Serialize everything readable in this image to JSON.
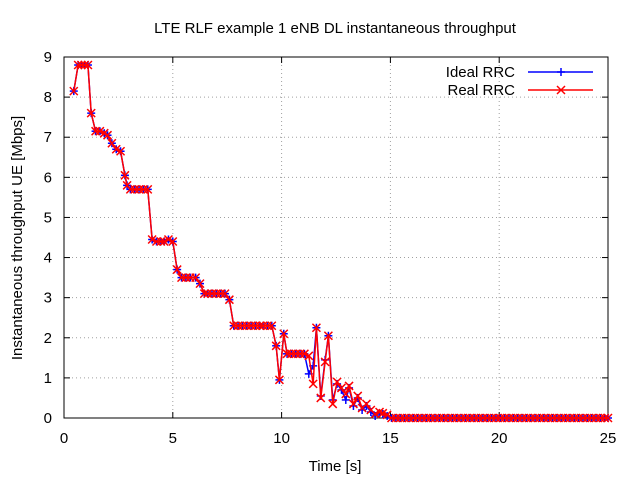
{
  "chart_data": {
    "type": "line",
    "title": "LTE RLF example 1 eNB DL instantaneous throughput",
    "xlabel": "Time [s]",
    "ylabel": "Instantaneous throughput UE [Mbps]",
    "xlim": [
      0,
      25
    ],
    "ylim": [
      0,
      9
    ],
    "xticks": [
      0,
      5,
      10,
      15,
      20,
      25
    ],
    "yticks": [
      0,
      1,
      2,
      3,
      4,
      5,
      6,
      7,
      8,
      9
    ],
    "grid": true,
    "legend_position": "top-right",
    "series": [
      {
        "name": "Ideal RRC",
        "color": "#0000ff",
        "marker": "plus",
        "x": [
          0.45,
          0.65,
          0.8,
          0.95,
          1.1,
          1.25,
          1.45,
          1.65,
          1.85,
          2.0,
          2.2,
          2.4,
          2.6,
          2.8,
          2.9,
          3.05,
          3.25,
          3.45,
          3.65,
          3.85,
          4.05,
          4.25,
          4.45,
          4.6,
          4.8,
          5.0,
          5.2,
          5.4,
          5.6,
          5.8,
          6.05,
          6.25,
          6.45,
          6.6,
          6.8,
          7.0,
          7.2,
          7.4,
          7.6,
          7.8,
          8.0,
          8.2,
          8.4,
          8.6,
          8.8,
          9.0,
          9.15,
          9.35,
          9.55,
          9.75,
          9.9,
          10.1,
          10.25,
          10.45,
          10.65,
          10.85,
          11.05,
          11.25,
          11.45,
          11.6,
          11.8,
          12.0,
          12.15,
          12.35,
          12.55,
          12.75,
          12.95,
          13.1,
          13.3,
          13.5,
          13.7,
          13.9,
          14.1,
          14.3,
          14.5,
          14.65,
          14.85,
          15.05,
          15.25,
          15.45,
          15.65,
          15.85,
          16.05,
          16.25,
          16.45,
          16.65,
          16.85,
          17.05,
          17.25,
          17.45,
          17.65,
          17.85,
          18.05,
          18.25,
          18.45,
          18.65,
          18.85,
          19.05,
          19.25,
          19.45,
          19.65,
          19.85,
          20.05,
          20.25,
          20.45,
          20.65,
          20.85,
          21.05,
          21.25,
          21.45,
          21.65,
          21.85,
          22.05,
          22.25,
          22.45,
          22.65,
          22.85,
          23.05,
          23.25,
          23.45,
          23.65,
          23.85,
          24.05,
          24.25,
          24.45,
          24.65,
          24.85,
          25.0
        ],
        "values": [
          8.15,
          8.8,
          8.8,
          8.8,
          8.8,
          7.6,
          7.15,
          7.15,
          7.1,
          7.05,
          6.85,
          6.7,
          6.65,
          6.05,
          5.8,
          5.7,
          5.7,
          5.7,
          5.7,
          5.7,
          4.45,
          4.4,
          4.4,
          4.4,
          4.45,
          4.4,
          3.7,
          3.5,
          3.5,
          3.5,
          3.5,
          3.35,
          3.1,
          3.1,
          3.1,
          3.1,
          3.1,
          3.1,
          2.95,
          2.3,
          2.3,
          2.3,
          2.3,
          2.3,
          2.3,
          2.3,
          2.3,
          2.3,
          2.3,
          1.8,
          0.95,
          2.1,
          1.6,
          1.6,
          1.6,
          1.6,
          1.6,
          1.1,
          1.3,
          2.25,
          0.55,
          1.45,
          2.05,
          0.45,
          0.85,
          0.7,
          0.45,
          0.75,
          0.3,
          0.5,
          0.2,
          0.3,
          0.15,
          0.05,
          0.12,
          0.1,
          0.05,
          0.0,
          0.0,
          0.0,
          0.0,
          0.0,
          0.0,
          0.0,
          0.0,
          0.0,
          0.0,
          0.0,
          0.0,
          0.0,
          0.0,
          0.0,
          0.0,
          0.0,
          0.0,
          0.0,
          0.0,
          0.0,
          0.0,
          0.0,
          0.0,
          0.0,
          0.0,
          0.0,
          0.0,
          0.0,
          0.0,
          0.0,
          0.0,
          0.0,
          0.0,
          0.0,
          0.0,
          0.0,
          0.0,
          0.0,
          0.0,
          0.0,
          0.0,
          0.0,
          0.0,
          0.0,
          0.0,
          0.0,
          0.0,
          0.0,
          0.0,
          0.0
        ]
      },
      {
        "name": "Real RRC",
        "color": "#ff0000",
        "marker": "cross",
        "x": [
          0.45,
          0.65,
          0.8,
          0.95,
          1.1,
          1.25,
          1.45,
          1.65,
          1.85,
          2.0,
          2.2,
          2.4,
          2.6,
          2.8,
          2.9,
          3.05,
          3.25,
          3.45,
          3.65,
          3.85,
          4.05,
          4.25,
          4.45,
          4.6,
          4.8,
          5.0,
          5.2,
          5.4,
          5.6,
          5.8,
          6.05,
          6.25,
          6.45,
          6.6,
          6.8,
          7.0,
          7.2,
          7.4,
          7.6,
          7.8,
          8.0,
          8.2,
          8.4,
          8.6,
          8.8,
          9.0,
          9.15,
          9.35,
          9.55,
          9.75,
          9.9,
          10.1,
          10.25,
          10.45,
          10.65,
          10.85,
          11.05,
          11.25,
          11.45,
          11.6,
          11.8,
          12.0,
          12.15,
          12.35,
          12.55,
          12.75,
          12.95,
          13.1,
          13.3,
          13.5,
          13.7,
          13.9,
          14.1,
          14.3,
          14.5,
          14.65,
          14.85,
          15.05,
          15.25,
          15.45,
          15.65,
          15.85,
          16.05,
          16.25,
          16.45,
          16.65,
          16.85,
          17.05,
          17.25,
          17.45,
          17.65,
          17.85,
          18.05,
          18.25,
          18.45,
          18.65,
          18.85,
          19.05,
          19.25,
          19.45,
          19.65,
          19.85,
          20.05,
          20.25,
          20.45,
          20.65,
          20.85,
          21.05,
          21.25,
          21.45,
          21.65,
          21.85,
          22.05,
          22.25,
          22.45,
          22.65,
          22.85,
          23.05,
          23.25,
          23.45,
          23.65,
          23.85,
          24.05,
          24.25,
          24.45,
          24.65,
          24.85,
          25.0
        ],
        "values": [
          8.15,
          8.8,
          8.8,
          8.8,
          8.8,
          7.6,
          7.15,
          7.15,
          7.1,
          7.05,
          6.85,
          6.7,
          6.65,
          6.05,
          5.8,
          5.7,
          5.7,
          5.7,
          5.7,
          5.7,
          4.45,
          4.4,
          4.4,
          4.4,
          4.45,
          4.4,
          3.7,
          3.5,
          3.5,
          3.5,
          3.5,
          3.35,
          3.1,
          3.1,
          3.1,
          3.1,
          3.1,
          3.1,
          2.95,
          2.3,
          2.3,
          2.3,
          2.3,
          2.3,
          2.3,
          2.3,
          2.3,
          2.3,
          2.3,
          1.8,
          0.95,
          2.1,
          1.6,
          1.6,
          1.6,
          1.6,
          1.6,
          1.55,
          0.85,
          2.25,
          0.5,
          1.4,
          2.05,
          0.35,
          0.9,
          0.75,
          0.6,
          0.8,
          0.35,
          0.55,
          0.25,
          0.35,
          0.2,
          0.1,
          0.15,
          0.12,
          0.08,
          0.0,
          0.0,
          0.0,
          0.0,
          0.0,
          0.0,
          0.0,
          0.0,
          0.0,
          0.0,
          0.0,
          0.0,
          0.0,
          0.0,
          0.0,
          0.0,
          0.0,
          0.0,
          0.0,
          0.0,
          0.0,
          0.0,
          0.0,
          0.0,
          0.0,
          0.0,
          0.0,
          0.0,
          0.0,
          0.0,
          0.0,
          0.0,
          0.0,
          0.0,
          0.0,
          0.0,
          0.0,
          0.0,
          0.0,
          0.0,
          0.0,
          0.0,
          0.0,
          0.0,
          0.0,
          0.0,
          0.0,
          0.0,
          0.0,
          0.0,
          0.0
        ]
      }
    ]
  }
}
